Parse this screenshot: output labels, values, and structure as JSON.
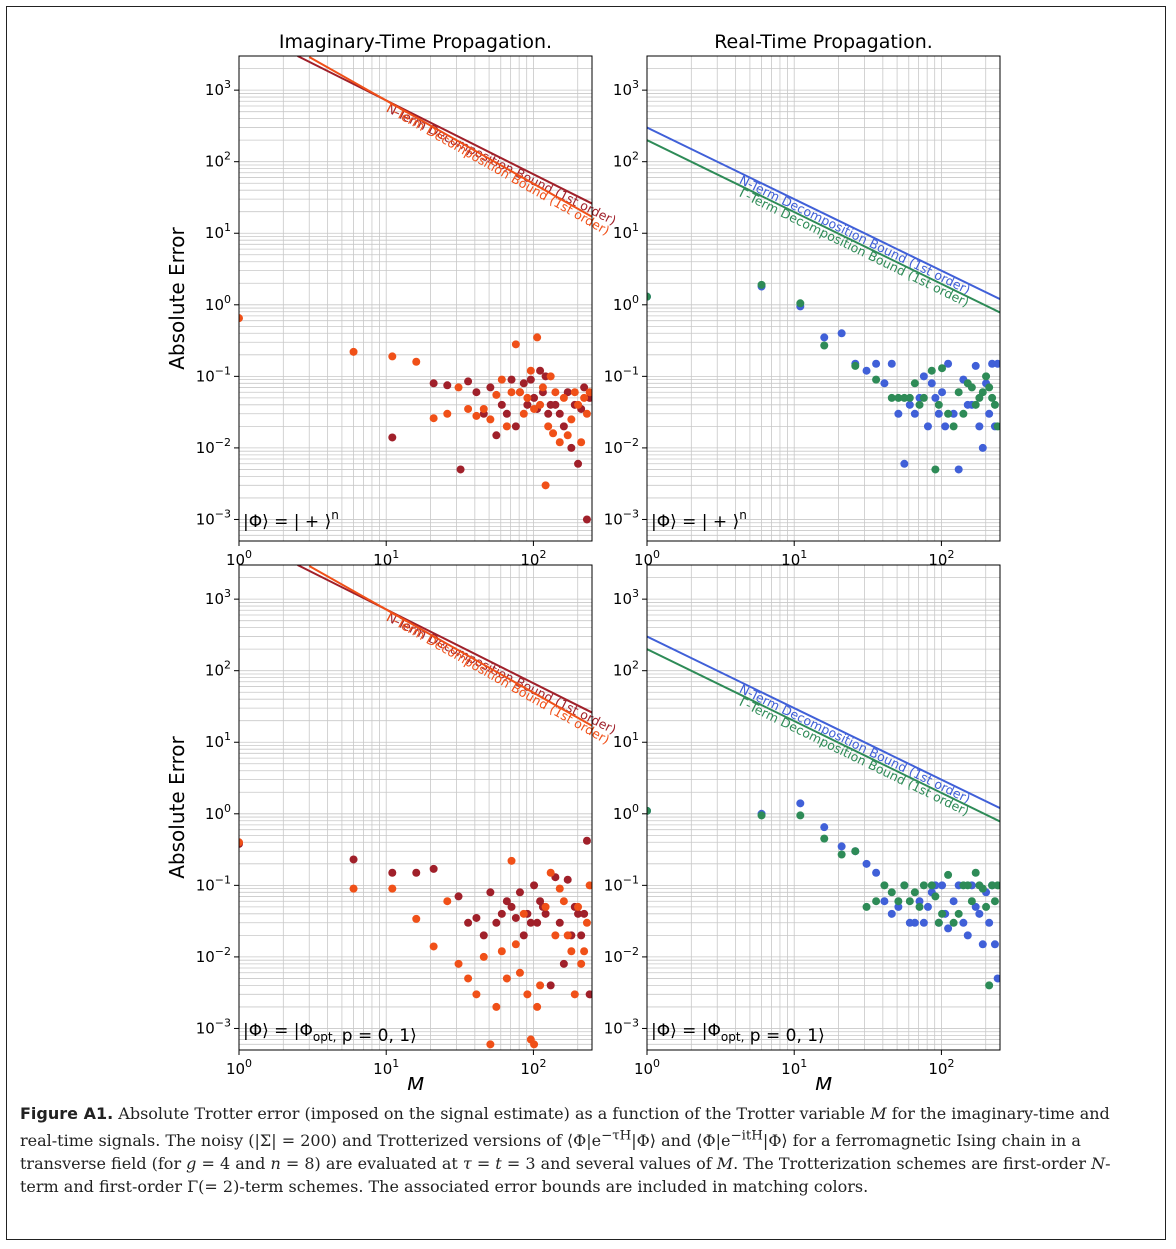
{
  "figure": {
    "caption_label": "Figure A1.",
    "caption_parts": [
      "Absolute Trotter error (imposed on the signal estimate) as a function of the Trotter variable ",
      "M",
      " for the imaginary-time and real-time signals. The noisy (|Σ| = 200) and Trotterized versions of ⟨Φ|e",
      "−τH",
      "|Φ⟩ and ⟨Φ|e",
      "−itH",
      "|Φ⟩ for a ferromagnetic Ising chain in a transverse field (for ",
      "g",
      " = 4 and ",
      "n",
      " = 8) are evaluated at ",
      "τ = t",
      " = 3 and several values of ",
      "M",
      ". The Trotterization schemes are first-order ",
      "N",
      "-term and first-order Γ(= 2)-term schemes. The associated error bounds are included in matching colors."
    ]
  },
  "chart_data": [
    {
      "type": "scatter",
      "title": "Imaginary-Time Propagation.",
      "xlabel": "",
      "ylabel": "Absolute Error",
      "xscale": "log",
      "yscale": "log",
      "xlim": [
        1,
        250
      ],
      "ylim": [
        0.0005,
        3000
      ],
      "x_ticks": [
        "10^0",
        "10^1",
        "10^2"
      ],
      "y_ticks": [
        "10^-3",
        "10^-2",
        "10^-1",
        "10^0",
        "10^1",
        "10^2",
        "10^3"
      ],
      "grid": true,
      "annotation": "|Φ⟩ = | + ⟩^n",
      "colors": {
        "n_term": "#a0202a",
        "gamma_term": "#f05018"
      },
      "bounds": [
        {
          "name": "N-Term Decomposition Bound (1st order)",
          "color": "#a0202a",
          "x": [
            2.5,
            250
          ],
          "y": [
            3000,
            26
          ]
        },
        {
          "name": "Γ-Term Decomposition Bound (1st order)",
          "color": "#f05018",
          "x": [
            3,
            250
          ],
          "y": [
            2900,
            17
          ]
        }
      ],
      "series": [
        {
          "color": "#a0202a",
          "x": [
            11,
            21,
            26,
            32,
            36,
            41,
            46,
            51,
            56,
            61,
            66,
            71,
            76,
            81,
            86,
            91,
            96,
            101,
            106,
            111,
            116,
            121,
            126,
            131,
            141,
            151,
            161,
            171,
            181,
            191,
            201,
            211,
            221,
            231,
            241
          ],
          "y": [
            0.014,
            0.08,
            0.075,
            0.005,
            0.085,
            0.06,
            0.03,
            0.07,
            0.015,
            0.04,
            0.03,
            0.09,
            0.02,
            0.06,
            0.08,
            0.04,
            0.09,
            0.05,
            0.035,
            0.12,
            0.06,
            0.1,
            0.03,
            0.04,
            0.04,
            0.03,
            0.02,
            0.06,
            0.01,
            0.04,
            0.006,
            0.035,
            0.07,
            0.001,
            0.05
          ]
        },
        {
          "color": "#f05018",
          "x": [
            1,
            6,
            11,
            16,
            21,
            26,
            31,
            36,
            41,
            46,
            51,
            56,
            61,
            66,
            71,
            76,
            81,
            86,
            91,
            96,
            101,
            106,
            111,
            116,
            121,
            126,
            131,
            136,
            141,
            151,
            161,
            171,
            181,
            191,
            201,
            211,
            221,
            231,
            241
          ],
          "y": [
            0.65,
            0.22,
            0.19,
            0.16,
            0.026,
            0.03,
            0.07,
            0.035,
            0.028,
            0.035,
            0.025,
            0.055,
            0.09,
            0.02,
            0.06,
            0.28,
            0.06,
            0.03,
            0.05,
            0.12,
            0.035,
            0.35,
            0.04,
            0.07,
            0.003,
            0.02,
            0.1,
            0.016,
            0.06,
            0.012,
            0.05,
            0.015,
            0.025,
            0.06,
            0.04,
            0.012,
            0.05,
            0.03,
            0.06
          ]
        }
      ]
    },
    {
      "type": "scatter",
      "title": "Real-Time Propagation.",
      "xlabel": "",
      "ylabel": "",
      "xscale": "log",
      "yscale": "log",
      "xlim": [
        1,
        250
      ],
      "ylim": [
        0.0005,
        3000
      ],
      "x_ticks": [
        "10^0",
        "10^1",
        "10^2"
      ],
      "y_ticks": [
        "10^-3",
        "10^-2",
        "10^-1",
        "10^0",
        "10^1",
        "10^2",
        "10^3"
      ],
      "grid": true,
      "annotation": "|Φ⟩ = | + ⟩^n",
      "colors": {
        "n_term": "#4060d8",
        "gamma_term": "#2e8b57"
      },
      "bounds": [
        {
          "name": "N-Term Decomposition Bound (1st order)",
          "color": "#4060d8",
          "x": [
            1,
            250
          ],
          "y": [
            300,
            1.2
          ]
        },
        {
          "name": "Γ-Term Decomposition Bound (1st order)",
          "color": "#2e8b57",
          "x": [
            1,
            250
          ],
          "y": [
            200,
            0.78
          ]
        }
      ],
      "series": [
        {
          "color": "#4060d8",
          "x": [
            1,
            6,
            11,
            16,
            21,
            26,
            31,
            36,
            41,
            46,
            51,
            56,
            61,
            66,
            71,
            76,
            81,
            86,
            91,
            96,
            101,
            106,
            111,
            121,
            131,
            141,
            151,
            161,
            171,
            181,
            191,
            201,
            211,
            221,
            231,
            241
          ],
          "y": [
            1.3,
            1.8,
            0.95,
            0.35,
            0.4,
            0.15,
            0.12,
            0.15,
            0.08,
            0.15,
            0.03,
            0.006,
            0.04,
            0.03,
            0.05,
            0.1,
            0.02,
            0.08,
            0.05,
            0.03,
            0.06,
            0.02,
            0.15,
            0.03,
            0.005,
            0.09,
            0.04,
            0.04,
            0.14,
            0.02,
            0.01,
            0.08,
            0.03,
            0.15,
            0.02,
            0.15
          ]
        },
        {
          "color": "#2e8b57",
          "x": [
            1,
            6,
            11,
            16,
            26,
            36,
            46,
            51,
            56,
            61,
            66,
            71,
            76,
            86,
            91,
            96,
            101,
            111,
            121,
            131,
            141,
            151,
            161,
            171,
            181,
            191,
            201,
            211,
            221,
            231,
            241
          ],
          "y": [
            1.3,
            1.9,
            1.05,
            0.27,
            0.14,
            0.09,
            0.05,
            0.05,
            0.05,
            0.05,
            0.08,
            0.04,
            0.05,
            0.12,
            0.005,
            0.04,
            0.13,
            0.03,
            0.02,
            0.06,
            0.03,
            0.08,
            0.07,
            0.04,
            0.05,
            0.06,
            0.1,
            0.07,
            0.05,
            0.04,
            0.02
          ]
        }
      ]
    },
    {
      "type": "scatter",
      "title": "",
      "xlabel": "M",
      "ylabel": "Absolute Error",
      "xscale": "log",
      "yscale": "log",
      "xlim": [
        1,
        250
      ],
      "ylim": [
        0.0005,
        3000
      ],
      "x_ticks": [
        "10^0",
        "10^1",
        "10^2"
      ],
      "y_ticks": [
        "10^-3",
        "10^-2",
        "10^-1",
        "10^0",
        "10^1",
        "10^2",
        "10^3"
      ],
      "grid": true,
      "annotation": "|Φ⟩ = |Φ_opt, p = 0, 1⟩",
      "colors": {
        "n_term": "#a0202a",
        "gamma_term": "#f05018"
      },
      "bounds": [
        {
          "name": "N-Term Decomposition Bound (1st order)",
          "color": "#a0202a",
          "x": [
            2.5,
            250
          ],
          "y": [
            3000,
            26
          ]
        },
        {
          "name": "Γ-Term Decomposition Bound (1st order)",
          "color": "#f05018",
          "x": [
            3,
            250
          ],
          "y": [
            2900,
            17
          ]
        }
      ],
      "series": [
        {
          "color": "#a0202a",
          "x": [
            1,
            6,
            11,
            16,
            21,
            31,
            36,
            41,
            46,
            51,
            56,
            61,
            66,
            71,
            76,
            81,
            86,
            91,
            96,
            101,
            106,
            111,
            116,
            121,
            131,
            141,
            151,
            161,
            171,
            181,
            191,
            201,
            211,
            221,
            231,
            241
          ],
          "y": [
            0.38,
            0.23,
            0.15,
            0.15,
            0.17,
            0.07,
            0.03,
            0.035,
            0.02,
            0.08,
            0.03,
            0.04,
            0.06,
            0.05,
            0.035,
            0.08,
            0.02,
            0.04,
            0.03,
            0.1,
            0.03,
            0.06,
            0.05,
            0.04,
            0.004,
            0.13,
            0.03,
            0.008,
            0.12,
            0.02,
            0.05,
            0.04,
            0.02,
            0.04,
            0.42,
            0.003
          ]
        },
        {
          "color": "#f05018",
          "x": [
            1,
            6,
            11,
            16,
            21,
            26,
            31,
            36,
            41,
            46,
            51,
            56,
            61,
            66,
            71,
            76,
            81,
            86,
            91,
            96,
            101,
            106,
            111,
            121,
            131,
            141,
            151,
            161,
            171,
            181,
            191,
            201,
            211,
            221,
            231,
            241
          ],
          "y": [
            0.4,
            0.09,
            0.09,
            0.034,
            0.014,
            0.06,
            0.008,
            0.005,
            0.003,
            0.01,
            0.0006,
            0.002,
            0.012,
            0.005,
            0.22,
            0.015,
            0.006,
            0.04,
            0.003,
            0.0007,
            0.0006,
            0.002,
            0.004,
            0.05,
            0.15,
            0.02,
            0.09,
            0.06,
            0.02,
            0.012,
            0.003,
            0.05,
            0.008,
            0.012,
            0.03,
            0.1
          ]
        }
      ]
    },
    {
      "type": "scatter",
      "title": "",
      "xlabel": "M",
      "ylabel": "",
      "xscale": "log",
      "yscale": "log",
      "xlim": [
        1,
        250
      ],
      "ylim": [
        0.0005,
        3000
      ],
      "x_ticks": [
        "10^0",
        "10^1",
        "10^2"
      ],
      "y_ticks": [
        "10^-3",
        "10^-2",
        "10^-1",
        "10^0",
        "10^1",
        "10^2",
        "10^3"
      ],
      "grid": true,
      "annotation": "|Φ⟩ = |Φ_opt, p = 0, 1⟩",
      "colors": {
        "n_term": "#4060d8",
        "gamma_term": "#2e8b57"
      },
      "bounds": [
        {
          "name": "N-Term Decomposition Bound (1st order)",
          "color": "#4060d8",
          "x": [
            1,
            250
          ],
          "y": [
            300,
            1.2
          ]
        },
        {
          "name": "Γ-Term Decomposition Bound (1st order)",
          "color": "#2e8b57",
          "x": [
            1,
            250
          ],
          "y": [
            200,
            0.78
          ]
        }
      ],
      "series": [
        {
          "color": "#4060d8",
          "x": [
            1,
            6,
            11,
            16,
            21,
            26,
            31,
            36,
            41,
            46,
            51,
            56,
            61,
            66,
            71,
            76,
            81,
            86,
            91,
            96,
            101,
            106,
            111,
            121,
            131,
            141,
            151,
            161,
            171,
            181,
            191,
            201,
            211,
            221,
            231,
            241
          ],
          "y": [
            1.1,
            1.0,
            1.4,
            0.65,
            0.35,
            0.3,
            0.2,
            0.15,
            0.06,
            0.04,
            0.05,
            0.1,
            0.03,
            0.03,
            0.06,
            0.03,
            0.05,
            0.08,
            0.1,
            0.03,
            0.1,
            0.04,
            0.025,
            0.06,
            0.1,
            0.03,
            0.02,
            0.1,
            0.05,
            0.04,
            0.015,
            0.08,
            0.03,
            0.1,
            0.015,
            0.005
          ]
        },
        {
          "color": "#2e8b57",
          "x": [
            1,
            6,
            11,
            16,
            21,
            26,
            31,
            36,
            41,
            46,
            51,
            56,
            61,
            66,
            71,
            76,
            86,
            91,
            96,
            101,
            111,
            121,
            131,
            141,
            151,
            161,
            171,
            181,
            191,
            201,
            211,
            221,
            231,
            241
          ],
          "y": [
            1.1,
            0.95,
            0.95,
            0.45,
            0.27,
            0.3,
            0.05,
            0.06,
            0.1,
            0.08,
            0.06,
            0.1,
            0.06,
            0.08,
            0.05,
            0.1,
            0.1,
            0.07,
            0.03,
            0.04,
            0.14,
            0.03,
            0.04,
            0.1,
            0.1,
            0.06,
            0.15,
            0.1,
            0.09,
            0.05,
            0.004,
            0.1,
            0.06,
            0.1
          ]
        }
      ]
    }
  ]
}
